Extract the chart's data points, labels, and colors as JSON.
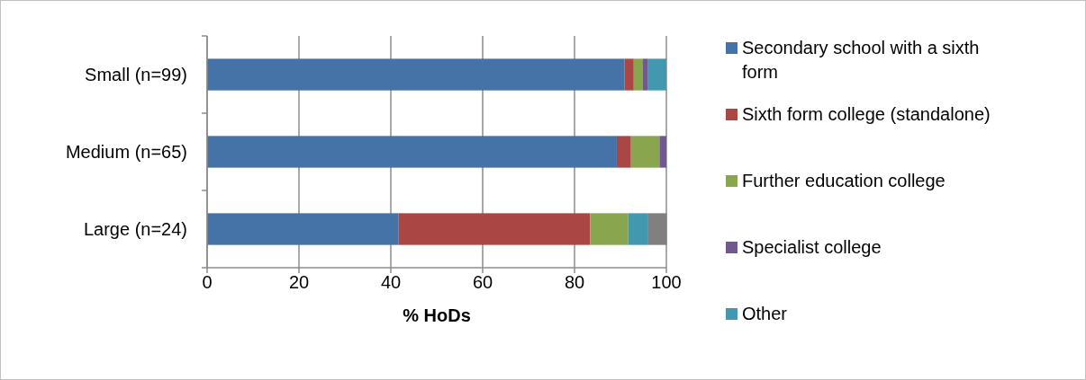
{
  "chart_data": {
    "type": "bar",
    "orientation": "horizontal",
    "stacked": true,
    "xlabel": "% HoDs",
    "categories": [
      "Small (n=99)",
      "Medium (n=65)",
      "Large (n=24)"
    ],
    "series": [
      {
        "name": "Secondary school with a sixth form",
        "color": "#4572a7",
        "values": [
          90.9,
          89.2,
          41.7
        ]
      },
      {
        "name": "Sixth form college (standalone)",
        "color": "#aa4643",
        "values": [
          2,
          3.1,
          41.7
        ]
      },
      {
        "name": "Further education college",
        "color": "#89a54e",
        "values": [
          2,
          6.2,
          8.3
        ]
      },
      {
        "name": "Specialist college",
        "color": "#71588f",
        "values": [
          1,
          1.5,
          0
        ]
      },
      {
        "name": "Other",
        "color": "#4198af",
        "values": [
          4.1,
          0,
          4.2
        ]
      },
      {
        "color": "#808080",
        "values": [
          0,
          0,
          4.2
        ]
      }
    ],
    "xlim": [
      0,
      100
    ],
    "xticks": [
      0,
      20,
      40,
      60,
      80,
      100
    ],
    "grid": "x",
    "legend": "right"
  }
}
